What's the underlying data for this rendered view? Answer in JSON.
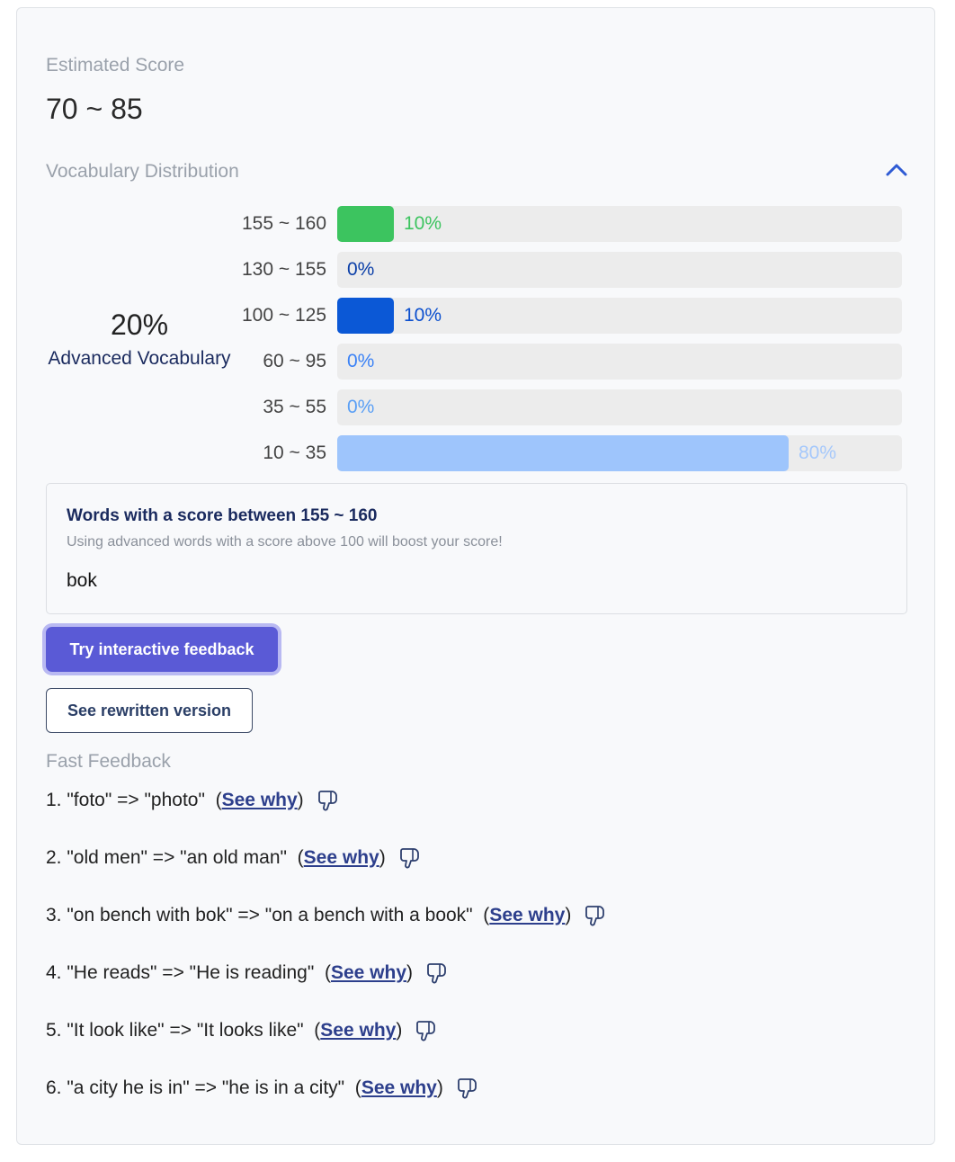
{
  "estimated_score": {
    "label": "Estimated Score",
    "value": "70 ~ 85"
  },
  "vocabulary": {
    "label": "Vocabulary Distribution",
    "toggle_icon": "chevron-up-icon",
    "summary": {
      "percent": "20%",
      "label": "Advanced Vocabulary"
    },
    "bars": [
      {
        "range": "155 ~ 160",
        "percent_label": "10%",
        "value": 10,
        "fill_color": "#3cc45f",
        "text_color": "#3cc45f"
      },
      {
        "range": "130 ~ 155",
        "percent_label": "0%",
        "value": 0,
        "fill_color": "#0b4fce",
        "text_color": "#0b3fa8"
      },
      {
        "range": "100 ~ 125",
        "percent_label": "10%",
        "value": 10,
        "fill_color": "#0b58d6",
        "text_color": "#0b4fce"
      },
      {
        "range": "60 ~ 95",
        "percent_label": "0%",
        "value": 0,
        "fill_color": "#3b82f6",
        "text_color": "#3b82f6"
      },
      {
        "range": "35 ~ 55",
        "percent_label": "0%",
        "value": 0,
        "fill_color": "#60a5fa",
        "text_color": "#5a9ff5"
      },
      {
        "range": "10 ~ 35",
        "percent_label": "80%",
        "value": 80,
        "fill_color": "#9ec5fc",
        "text_color": "#a5c8fb"
      }
    ]
  },
  "words_box": {
    "title": "Words with a score between 155 ~ 160",
    "subtitle": "Using advanced words with a score above 100 will boost your score!",
    "words": "bok"
  },
  "buttons": {
    "interactive_feedback": "Try interactive feedback",
    "rewritten_version": "See rewritten version"
  },
  "fast_feedback": {
    "label": "Fast Feedback",
    "link_label": "See why",
    "items": [
      {
        "text": "1. \"foto\" => \"photo\""
      },
      {
        "text": "2. \"old men\" => \"an old man\""
      },
      {
        "text": "3. \"on bench with bok\" => \"on a bench with a book\""
      },
      {
        "text": "4. \"He reads\" => \"He is reading\""
      },
      {
        "text": "5. \"It look like\" => \"It looks like\""
      },
      {
        "text": "6. \"a city he is in\" => \"he is in a city\""
      }
    ]
  },
  "colors": {
    "accent": "#5a5ad6",
    "link": "#2d3f8c",
    "chevron": "#2f5bd4"
  }
}
